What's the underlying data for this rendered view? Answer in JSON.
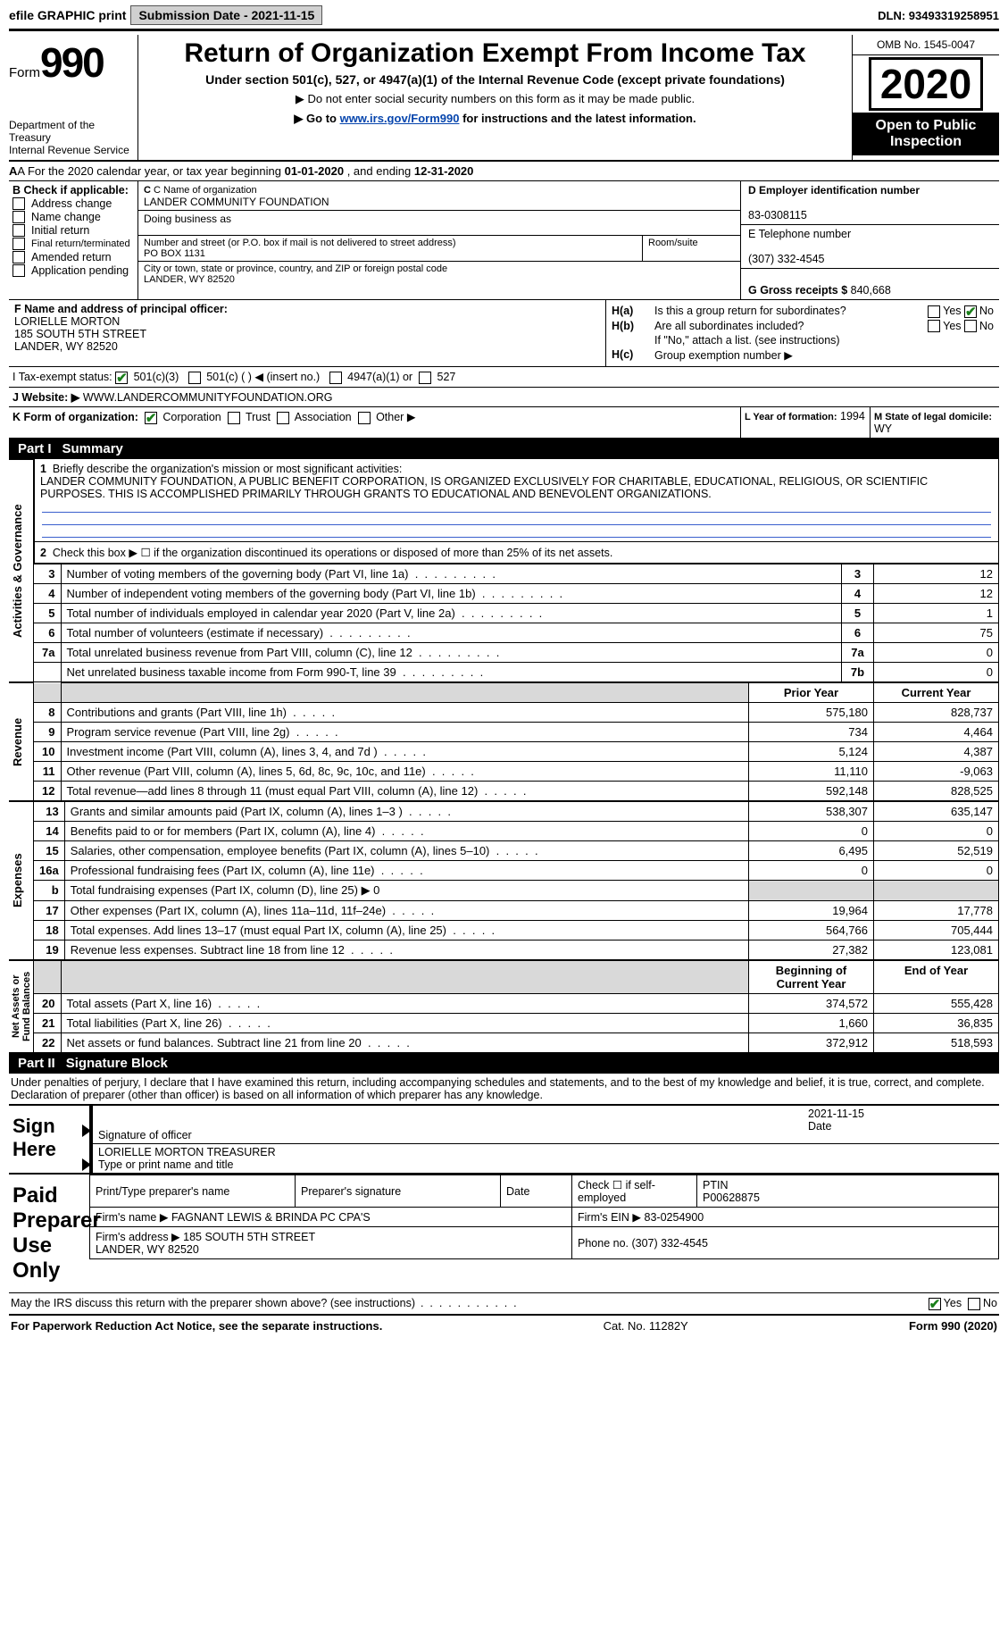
{
  "topbar": {
    "efile": "efile GRAPHIC print",
    "submission_label": "Submission Date - 2021-11-15",
    "dln_label": "DLN: 93493319258951"
  },
  "header": {
    "form_label": "Form",
    "form_number": "990",
    "dept": "Department of the Treasury\nInternal Revenue Service",
    "title": "Return of Organization Exempt From Income Tax",
    "subtitle": "Under section 501(c), 527, or 4947(a)(1) of the Internal Revenue Code (except private foundations)",
    "note1": "▶ Do not enter social security numbers on this form as it may be made public.",
    "note2_pre": "▶ Go to ",
    "note2_link": "www.irs.gov/Form990",
    "note2_post": " for instructions and the latest information.",
    "omb": "OMB No. 1545-0047",
    "year": "2020",
    "open": "Open to Public Inspection"
  },
  "lineA": {
    "pre": "A For the 2020 calendar year, or tax year beginning ",
    "begin": "01-01-2020",
    "mid": "   , and ending ",
    "end": "12-31-2020"
  },
  "colB": {
    "hdr": "B Check if applicable:",
    "items": [
      "Address change",
      "Name change",
      "Initial return",
      "Final return/terminated",
      "Amended return",
      "Application pending"
    ],
    "checked": []
  },
  "colC": {
    "name_lbl": "C Name of organization",
    "name": "LANDER COMMUNITY FOUNDATION",
    "dba_lbl": "Doing business as",
    "dba": "",
    "addr_lbl": "Number and street (or P.O. box if mail is not delivered to street address)",
    "addr": "PO BOX 1131",
    "room_lbl": "Room/suite",
    "city_lbl": "City or town, state or province, country, and ZIP or foreign postal code",
    "city": "LANDER, WY  82520"
  },
  "colD": {
    "ein_lbl": "D Employer identification number",
    "ein": "83-0308115",
    "tel_lbl": "E Telephone number",
    "tel": "(307) 332-4545",
    "gross_lbl": "G Gross receipts $",
    "gross": "840,668"
  },
  "colF": {
    "lbl": "F Name and address of principal officer:",
    "name": "LORIELLE MORTON",
    "addr1": "185 SOUTH 5TH STREET",
    "addr2": "LANDER, WY  82520"
  },
  "colH": {
    "ha": "Is this a group return for subordinates?",
    "ha_ans_no": true,
    "hb": "Are all subordinates included?",
    "hb_note": "If \"No,\" attach a list. (see instructions)",
    "hc": "Group exemption number ▶"
  },
  "lineI": {
    "lbl": "I    Tax-exempt status:",
    "opts": [
      "501(c)(3)",
      "501(c) (   ) ◀ (insert no.)",
      "4947(a)(1) or",
      "527"
    ],
    "checked": 0
  },
  "lineJ": {
    "lbl": "J   Website: ▶",
    "val": "WWW.LANDERCOMMUNITYFOUNDATION.ORG"
  },
  "lineK": {
    "lbl": "K Form of organization:",
    "opts": [
      "Corporation",
      "Trust",
      "Association",
      "Other ▶"
    ],
    "checked": 0,
    "L_lbl": "L Year of formation:",
    "L_val": "1994",
    "M_lbl": "M State of legal domicile:",
    "M_val": "WY"
  },
  "partI": {
    "num": "Part I",
    "title": "Summary",
    "line1_lbl": "Briefly describe the organization's mission or most significant activities:",
    "line1_txt": "LANDER COMMUNITY FOUNDATION, A PUBLIC BENEFIT CORPORATION, IS ORGANIZED EXCLUSIVELY FOR CHARITABLE, EDUCATIONAL, RELIGIOUS, OR SCIENTIFIC PURPOSES. THIS IS ACCOMPLISHED PRIMARILY THROUGH GRANTS TO EDUCATIONAL AND BENEVOLENT ORGANIZATIONS.",
    "line2": "Check this box ▶ ☐ if the organization discontinued its operations or disposed of more than 25% of its net assets.",
    "gov_rows": [
      {
        "n": "3",
        "d": "Number of voting members of the governing body (Part VI, line 1a)",
        "b": "3",
        "v": "12"
      },
      {
        "n": "4",
        "d": "Number of independent voting members of the governing body (Part VI, line 1b)",
        "b": "4",
        "v": "12"
      },
      {
        "n": "5",
        "d": "Total number of individuals employed in calendar year 2020 (Part V, line 2a)",
        "b": "5",
        "v": "1"
      },
      {
        "n": "6",
        "d": "Total number of volunteers (estimate if necessary)",
        "b": "6",
        "v": "75"
      },
      {
        "n": "7a",
        "d": "Total unrelated business revenue from Part VIII, column (C), line 12",
        "b": "7a",
        "v": "0"
      },
      {
        "n": "",
        "d": "Net unrelated business taxable income from Form 990-T, line 39",
        "b": "7b",
        "v": "0"
      }
    ],
    "py_hdr": "Prior Year",
    "cy_hdr": "Current Year",
    "rev_rows": [
      {
        "n": "8",
        "d": "Contributions and grants (Part VIII, line 1h)",
        "py": "575,180",
        "cy": "828,737"
      },
      {
        "n": "9",
        "d": "Program service revenue (Part VIII, line 2g)",
        "py": "734",
        "cy": "4,464"
      },
      {
        "n": "10",
        "d": "Investment income (Part VIII, column (A), lines 3, 4, and 7d )",
        "py": "5,124",
        "cy": "4,387"
      },
      {
        "n": "11",
        "d": "Other revenue (Part VIII, column (A), lines 5, 6d, 8c, 9c, 10c, and 11e)",
        "py": "11,110",
        "cy": "-9,063"
      },
      {
        "n": "12",
        "d": "Total revenue—add lines 8 through 11 (must equal Part VIII, column (A), line 12)",
        "py": "592,148",
        "cy": "828,525"
      }
    ],
    "exp_rows": [
      {
        "n": "13",
        "d": "Grants and similar amounts paid (Part IX, column (A), lines 1–3 )",
        "py": "538,307",
        "cy": "635,147"
      },
      {
        "n": "14",
        "d": "Benefits paid to or for members (Part IX, column (A), line 4)",
        "py": "0",
        "cy": "0"
      },
      {
        "n": "15",
        "d": "Salaries, other compensation, employee benefits (Part IX, column (A), lines 5–10)",
        "py": "6,495",
        "cy": "52,519"
      },
      {
        "n": "16a",
        "d": "Professional fundraising fees (Part IX, column (A), line 11e)",
        "py": "0",
        "cy": "0"
      },
      {
        "n": "b",
        "d": "Total fundraising expenses (Part IX, column (D), line 25) ▶ 0",
        "py": "",
        "cy": "",
        "grey": true
      },
      {
        "n": "17",
        "d": "Other expenses (Part IX, column (A), lines 11a–11d, 11f–24e)",
        "py": "19,964",
        "cy": "17,778"
      },
      {
        "n": "18",
        "d": "Total expenses. Add lines 13–17 (must equal Part IX, column (A), line 25)",
        "py": "564,766",
        "cy": "705,444"
      },
      {
        "n": "19",
        "d": "Revenue less expenses. Subtract line 18 from line 12",
        "py": "27,382",
        "cy": "123,081"
      }
    ],
    "na_hdr1": "Beginning of Current Year",
    "na_hdr2": "End of Year",
    "na_rows": [
      {
        "n": "20",
        "d": "Total assets (Part X, line 16)",
        "py": "374,572",
        "cy": "555,428"
      },
      {
        "n": "21",
        "d": "Total liabilities (Part X, line 26)",
        "py": "1,660",
        "cy": "36,835"
      },
      {
        "n": "22",
        "d": "Net assets or fund balances. Subtract line 21 from line 20",
        "py": "372,912",
        "cy": "518,593"
      }
    ],
    "tabs": {
      "gov": "Activities & Governance",
      "rev": "Revenue",
      "exp": "Expenses",
      "na": "Net Assets or\nFund Balances"
    }
  },
  "partII": {
    "num": "Part II",
    "title": "Signature Block",
    "perjury": "Under penalties of perjury, I declare that I have examined this return, including accompanying schedules and statements, and to the best of my knowledge and belief, it is true, correct, and complete. Declaration of preparer (other than officer) is based on all information of which preparer has any knowledge.",
    "sign_here": "Sign Here",
    "sig_officer": "Signature of officer",
    "sig_date_lbl": "Date",
    "sig_date": "2021-11-15",
    "sig_name": "LORIELLE MORTON TREASURER",
    "sig_name_lbl": "Type or print name and title",
    "paid": "Paid Preparer Use Only",
    "prep_name_lbl": "Print/Type preparer's name",
    "prep_sig_lbl": "Preparer's signature",
    "prep_date_lbl": "Date",
    "self_emp": "Check ☐ if self-employed",
    "ptin_lbl": "PTIN",
    "ptin": "P00628875",
    "firm_name_lbl": "Firm's name    ▶",
    "firm_name": "FAGNANT LEWIS & BRINDA PC CPA'S",
    "firm_ein_lbl": "Firm's EIN ▶",
    "firm_ein": "83-0254900",
    "firm_addr_lbl": "Firm's address ▶",
    "firm_addr": "185 SOUTH 5TH STREET\nLANDER, WY  82520",
    "firm_phone_lbl": "Phone no.",
    "firm_phone": "(307) 332-4545",
    "discuss": "May the IRS discuss this return with the preparer shown above? (see instructions)",
    "discuss_yes": true
  },
  "footer": {
    "left": "For Paperwork Reduction Act Notice, see the separate instructions.",
    "mid": "Cat. No. 11282Y",
    "right": "Form 990 (2020)"
  }
}
